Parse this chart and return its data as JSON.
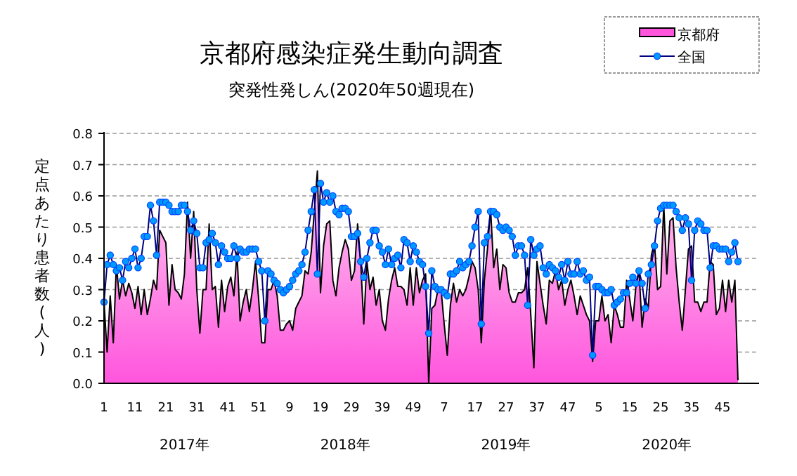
{
  "chart_data": {
    "type": "area",
    "title": "京都府感染症発生動向調査",
    "subtitle": "突発性発しん(2020年50週現在)",
    "ylabel": "定点あたり患者数(人)",
    "annotations": [
      "2017年",
      "2018年",
      "2019年",
      "2020年"
    ],
    "categories": [
      "1",
      null,
      null,
      null,
      null,
      null,
      null,
      null,
      null,
      null,
      "11",
      null,
      null,
      null,
      null,
      null,
      null,
      null,
      null,
      null,
      "21",
      null,
      null,
      null,
      null,
      null,
      null,
      null,
      null,
      null,
      "31",
      null,
      null,
      null,
      null,
      null,
      null,
      null,
      null,
      null,
      "41",
      null,
      null,
      null,
      null,
      null,
      null,
      null,
      null,
      null,
      "51",
      null,
      null,
      null,
      null,
      null,
      null,
      null,
      null,
      null,
      "9",
      null,
      null,
      null,
      null,
      null,
      null,
      null,
      null,
      null,
      "19",
      null,
      null,
      null,
      null,
      null,
      null,
      null,
      null,
      null,
      "29",
      null,
      null,
      null,
      null,
      null,
      null,
      null,
      null,
      null,
      "39",
      null,
      null,
      null,
      null,
      null,
      null,
      null,
      null,
      null,
      "49",
      null,
      null,
      null,
      null,
      null,
      null,
      null,
      null,
      null,
      "7",
      null,
      null,
      null,
      null,
      null,
      null,
      null,
      null,
      null,
      "17",
      null,
      null,
      null,
      null,
      null,
      null,
      null,
      null,
      null,
      "27",
      null,
      null,
      null,
      null,
      null,
      null,
      null,
      null,
      null,
      "37",
      null,
      null,
      null,
      null,
      null,
      null,
      null,
      null,
      null,
      "47",
      null,
      null,
      null,
      null,
      null,
      null,
      null,
      null,
      null,
      "5",
      null,
      null,
      null,
      null,
      null,
      null,
      null,
      null,
      null,
      "15",
      null,
      null,
      null,
      null,
      null,
      null,
      null,
      null,
      null,
      "25",
      null,
      null,
      null,
      null,
      null,
      null,
      null,
      null,
      null,
      "35",
      null,
      null,
      null,
      null,
      null,
      null,
      null,
      null,
      null,
      "45",
      null,
      null,
      null,
      null,
      null
    ],
    "series": [
      {
        "name": "京都府",
        "color": "#ff55dd",
        "values": [
          0.26,
          0.1,
          0.28,
          0.13,
          0.38,
          0.27,
          0.33,
          0.28,
          0.32,
          0.29,
          0.24,
          0.31,
          0.22,
          0.3,
          0.22,
          0.27,
          0.33,
          0.3,
          0.49,
          0.47,
          0.45,
          0.25,
          0.38,
          0.3,
          0.29,
          0.27,
          0.35,
          0.58,
          0.4,
          0.55,
          0.3,
          0.16,
          0.3,
          0.3,
          0.51,
          0.3,
          0.31,
          0.18,
          0.33,
          0.23,
          0.31,
          0.34,
          0.28,
          0.42,
          0.2,
          0.26,
          0.3,
          0.23,
          0.3,
          0.39,
          0.27,
          0.13,
          0.13,
          0.3,
          0.3,
          0.33,
          0.28,
          0.17,
          0.17,
          0.19,
          0.2,
          0.17,
          0.24,
          0.26,
          0.28,
          0.36,
          0.35,
          0.42,
          0.55,
          0.68,
          0.29,
          0.44,
          0.51,
          0.52,
          0.33,
          0.28,
          0.37,
          0.42,
          0.46,
          0.43,
          0.33,
          0.36,
          0.51,
          0.39,
          0.19,
          0.39,
          0.3,
          0.34,
          0.25,
          0.3,
          0.2,
          0.17,
          0.27,
          0.33,
          0.37,
          0.31,
          0.31,
          0.3,
          0.25,
          0.37,
          0.25,
          0.37,
          0.29,
          0.33,
          0.35,
          0.0,
          0.24,
          0.25,
          0.3,
          0.3,
          0.19,
          0.09,
          0.25,
          0.32,
          0.26,
          0.3,
          0.28,
          0.3,
          0.34,
          0.39,
          0.37,
          0.3,
          0.13,
          0.33,
          0.43,
          0.56,
          0.37,
          0.43,
          0.3,
          0.38,
          0.37,
          0.29,
          0.26,
          0.26,
          0.29,
          0.29,
          0.3,
          0.37,
          0.22,
          0.05,
          0.39,
          0.32,
          0.25,
          0.19,
          0.33,
          0.32,
          0.36,
          0.3,
          0.33,
          0.25,
          0.3,
          0.33,
          0.28,
          0.22,
          0.28,
          0.25,
          0.22,
          0.2,
          0.07,
          0.2,
          0.2,
          0.28,
          0.2,
          0.22,
          0.13,
          0.25,
          0.22,
          0.18,
          0.18,
          0.33,
          0.27,
          0.2,
          0.31,
          0.36,
          0.18,
          0.27,
          0.24,
          0.41,
          0.45,
          0.3,
          0.31,
          0.57,
          0.35,
          0.52,
          0.53,
          0.37,
          0.26,
          0.17,
          0.3,
          0.43,
          0.44,
          0.26,
          0.26,
          0.23,
          0.26,
          0.26,
          0.39,
          0.38,
          0.22,
          0.24,
          0.33,
          0.23,
          0.33,
          0.26,
          0.33,
          0.01
        ]
      },
      {
        "name": "全国",
        "type": "line",
        "color": "#0099ff",
        "marker": "circle",
        "values": [
          0.26,
          0.38,
          0.41,
          0.38,
          0.36,
          0.37,
          0.33,
          0.39,
          0.37,
          0.4,
          0.43,
          0.37,
          0.4,
          0.47,
          0.47,
          0.57,
          0.52,
          0.41,
          0.58,
          0.58,
          0.58,
          0.57,
          0.55,
          0.55,
          0.55,
          0.57,
          0.57,
          0.55,
          0.49,
          0.52,
          0.48,
          0.37,
          0.37,
          0.45,
          0.46,
          0.48,
          0.45,
          0.38,
          0.44,
          0.42,
          0.4,
          0.4,
          0.44,
          0.4,
          0.43,
          0.42,
          0.42,
          0.43,
          0.43,
          0.43,
          0.39,
          0.36,
          0.2,
          0.36,
          0.35,
          0.33,
          0.32,
          0.3,
          0.29,
          0.3,
          0.31,
          0.33,
          0.35,
          0.36,
          0.38,
          0.42,
          0.49,
          0.55,
          0.62,
          0.35,
          0.64,
          0.58,
          0.61,
          0.58,
          0.6,
          0.55,
          0.54,
          0.56,
          0.56,
          0.55,
          0.47,
          0.47,
          0.48,
          0.39,
          0.34,
          0.4,
          0.45,
          0.49,
          0.49,
          0.44,
          0.42,
          0.38,
          0.43,
          0.38,
          0.4,
          0.41,
          0.37,
          0.46,
          0.45,
          0.39,
          0.44,
          0.42,
          0.39,
          0.38,
          0.31,
          0.16,
          0.36,
          0.31,
          0.3,
          0.3,
          0.29,
          0.28,
          0.35,
          0.35,
          0.36,
          0.39,
          0.37,
          0.38,
          0.39,
          0.44,
          0.5,
          0.55,
          0.19,
          0.45,
          0.47,
          0.55,
          0.55,
          0.54,
          0.5,
          0.49,
          0.5,
          0.49,
          0.47,
          0.41,
          0.44,
          0.44,
          0.41,
          0.25,
          0.46,
          0.41,
          0.43,
          0.44,
          0.37,
          0.35,
          0.38,
          0.37,
          0.36,
          0.34,
          0.38,
          0.33,
          0.39,
          0.35,
          0.35,
          0.39,
          0.35,
          0.36,
          0.33,
          0.34,
          0.09,
          0.31,
          0.31,
          0.3,
          0.29,
          0.29,
          0.3,
          0.25,
          0.26,
          0.27,
          0.29,
          0.29,
          0.32,
          0.34,
          0.32,
          0.36,
          0.32,
          0.24,
          0.35,
          0.38,
          0.44,
          0.52,
          0.56,
          0.57,
          0.57,
          0.57,
          0.57,
          0.55,
          0.53,
          0.49,
          0.53,
          0.51,
          0.33,
          0.49,
          0.52,
          0.51,
          0.49,
          0.49,
          0.37,
          0.44,
          0.44,
          0.43,
          0.43,
          0.43,
          0.39,
          0.42,
          0.45,
          0.39
        ]
      }
    ],
    "ylim": [
      0,
      0.8
    ],
    "yticks": [
      {
        "value": 0,
        "label": "0.0"
      },
      {
        "value": 0.1,
        "label": "0.1"
      },
      {
        "value": 0.2,
        "label": "0.2"
      },
      {
        "value": 0.3,
        "label": "0.3"
      },
      {
        "value": 0.4,
        "label": "0.4"
      },
      {
        "value": 0.5,
        "label": "0.5"
      },
      {
        "value": 0.6,
        "label": "0.6"
      },
      {
        "value": 0.7,
        "label": "0.7"
      },
      {
        "value": 0.8,
        "label": "0.8"
      }
    ],
    "grid": "y",
    "legend": "top right",
    "line_style": "solid"
  }
}
